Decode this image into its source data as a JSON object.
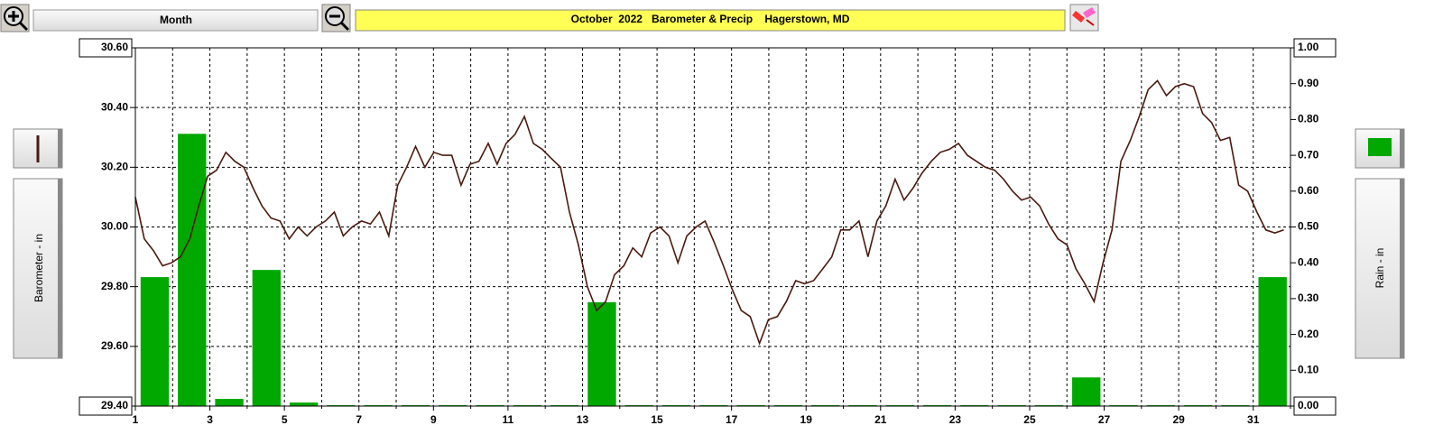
{
  "toolbar": {
    "period": "Month"
  },
  "chart_data": {
    "type": "combo",
    "title": "October  2022   Barometer & Precip    Hagerstown, MD",
    "xlim": [
      1,
      32
    ],
    "xticks": [
      1,
      3,
      5,
      7,
      9,
      11,
      13,
      15,
      17,
      19,
      21,
      23,
      25,
      27,
      29,
      31
    ],
    "xminorticks": [
      2,
      4,
      6,
      8,
      10,
      12,
      14,
      16,
      18,
      20,
      22,
      24,
      26,
      28,
      30,
      32
    ],
    "ylim": [
      29.4,
      30.6
    ],
    "yticks": [
      {
        "value": 29.4,
        "label": "29.40"
      },
      {
        "value": 29.6,
        "label": "29.60"
      },
      {
        "value": 29.8,
        "label": "29.80"
      },
      {
        "value": 30.0,
        "label": "30.00"
      },
      {
        "value": 30.2,
        "label": "30.20"
      },
      {
        "value": 30.4,
        "label": "30.40"
      },
      {
        "value": 30.6,
        "label": "30.60"
      }
    ],
    "y2lim": [
      0,
      1
    ],
    "y2ticks": [
      {
        "value": 0,
        "label": "0.00"
      },
      {
        "value": 0.1,
        "label": "0.10"
      },
      {
        "value": 0.2,
        "label": "0.20"
      },
      {
        "value": 0.3,
        "label": "0.30"
      },
      {
        "value": 0.4,
        "label": "0.40"
      },
      {
        "value": 0.5,
        "label": "0.50"
      },
      {
        "value": 0.6,
        "label": "0.60"
      },
      {
        "value": 0.7,
        "label": "0.70"
      },
      {
        "value": 0.8,
        "label": "0.80"
      },
      {
        "value": 0.9,
        "label": "0.90"
      },
      {
        "value": 1,
        "label": "1.00"
      }
    ],
    "grid": true,
    "series": [
      {
        "name": "Barometer - in",
        "type": "line",
        "axis": "y",
        "color": "#4a1a10",
        "x": [
          1.0,
          1.24,
          1.49,
          1.73,
          1.97,
          2.21,
          2.46,
          2.7,
          2.94,
          3.18,
          3.43,
          3.67,
          3.91,
          4.16,
          4.4,
          4.64,
          4.88,
          5.13,
          5.37,
          5.61,
          5.85,
          6.1,
          6.34,
          6.58,
          6.82,
          7.07,
          7.31,
          7.55,
          7.8,
          8.04,
          8.28,
          8.52,
          8.77,
          9.01,
          9.25,
          9.49,
          9.74,
          9.98,
          10.22,
          10.47,
          10.71,
          10.95,
          11.19,
          11.44,
          11.68,
          11.92,
          12.16,
          12.41,
          12.65,
          12.89,
          13.13,
          13.38,
          13.62,
          13.86,
          14.11,
          14.35,
          14.59,
          14.83,
          15.08,
          15.32,
          15.56,
          15.8,
          16.05,
          16.29,
          16.53,
          16.78,
          17.02,
          17.26,
          17.5,
          17.75,
          17.99,
          18.23,
          18.47,
          18.72,
          18.96,
          19.2,
          19.45,
          19.69,
          19.93,
          20.17,
          20.42,
          20.66,
          20.9,
          21.14,
          21.39,
          21.63,
          21.87,
          22.11,
          22.36,
          22.6,
          22.84,
          23.09,
          23.33,
          23.57,
          23.81,
          24.06,
          24.3,
          24.54,
          24.78,
          25.03,
          25.27,
          25.51,
          25.76,
          26.0,
          26.24,
          26.48,
          26.73,
          26.97,
          27.21,
          27.45,
          27.7,
          27.94,
          28.18,
          28.43,
          28.67,
          28.91,
          29.15,
          29.4,
          29.64,
          29.88,
          30.12,
          30.37,
          30.61,
          30.85,
          31.1,
          31.34,
          31.58,
          31.82
        ],
        "values": [
          30.1,
          29.96,
          29.92,
          29.87,
          29.88,
          29.9,
          29.96,
          30.07,
          30.17,
          30.19,
          30.25,
          30.22,
          30.2,
          30.13,
          30.07,
          30.03,
          30.02,
          29.96,
          30.0,
          29.97,
          30.0,
          30.02,
          30.05,
          29.97,
          30.0,
          30.02,
          30.01,
          30.05,
          29.97,
          30.14,
          30.2,
          30.27,
          30.2,
          30.25,
          30.24,
          30.24,
          30.14,
          30.21,
          30.22,
          30.28,
          30.21,
          30.28,
          30.31,
          30.37,
          30.28,
          30.26,
          30.23,
          30.2,
          30.05,
          29.94,
          29.8,
          29.72,
          29.75,
          29.84,
          29.87,
          29.93,
          29.9,
          29.98,
          30.0,
          29.97,
          29.88,
          29.97,
          30.0,
          30.02,
          29.95,
          29.87,
          29.79,
          29.72,
          29.7,
          29.61,
          29.69,
          29.7,
          29.75,
          29.82,
          29.81,
          29.82,
          29.86,
          29.9,
          29.99,
          29.99,
          30.02,
          29.9,
          30.02,
          30.07,
          30.16,
          30.09,
          30.13,
          30.18,
          30.22,
          30.25,
          30.26,
          30.28,
          30.24,
          30.22,
          30.2,
          30.19,
          30.16,
          30.12,
          30.09,
          30.1,
          30.07,
          30.01,
          29.96,
          29.94,
          29.86,
          29.81,
          29.75,
          29.88,
          29.99,
          30.22,
          30.29,
          30.37,
          30.46,
          30.49,
          30.44,
          30.47,
          30.48,
          30.47,
          30.38,
          30.35,
          30.29,
          30.3,
          30.14,
          30.12,
          30.05,
          29.99,
          29.98,
          29.99
        ]
      },
      {
        "name": "Rain - in",
        "type": "bar",
        "axis": "y2",
        "color": "#00a800",
        "x": [
          1,
          2,
          3,
          4,
          5,
          6,
          7,
          8,
          9,
          10,
          11,
          12,
          13,
          14,
          15,
          16,
          17,
          18,
          19,
          20,
          21,
          22,
          23,
          24,
          25,
          26,
          27,
          28,
          29,
          30,
          31
        ],
        "values": [
          0.36,
          0.76,
          0.02,
          0.38,
          0.01,
          0,
          0,
          0,
          0,
          0,
          0,
          0,
          0.29,
          0,
          0,
          0,
          0,
          0,
          0,
          0,
          0,
          0,
          0,
          0,
          0,
          0.08,
          0,
          0,
          0,
          0,
          0.36
        ]
      }
    ]
  }
}
